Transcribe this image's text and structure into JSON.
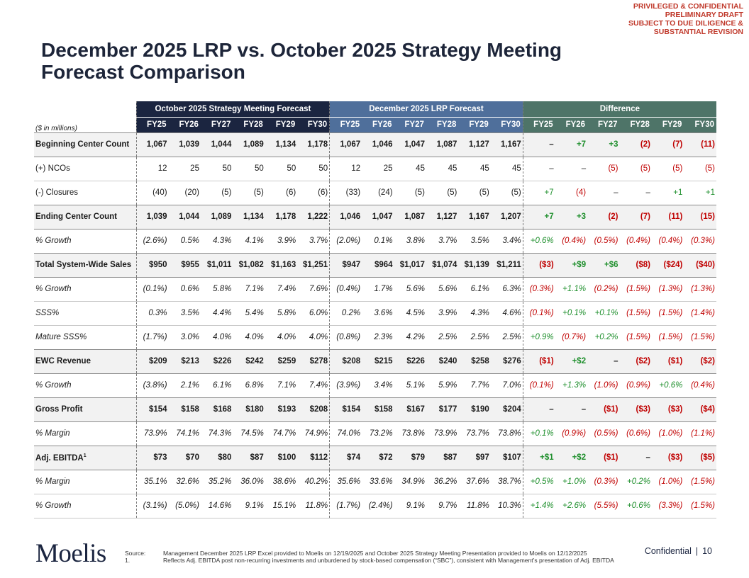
{
  "stamp": [
    "PRIVILEGED & CONFIDENTIAL",
    "PRELIMINARY DRAFT",
    "SUBJECT TO DUE DILIGENCE &",
    "SUBSTANTIAL REVISION"
  ],
  "title_line1": "December 2025 LRP vs. October 2025 Strategy Meeting",
  "title_line2": "Forecast Comparison",
  "unit_label": "($ in millions)",
  "groups": {
    "oct": "October 2025 Strategy Meeting Forecast",
    "dec": "December 2025 LRP Forecast",
    "diff": "Difference"
  },
  "years": [
    "FY25",
    "FY26",
    "FY27",
    "FY28",
    "FY29",
    "FY30"
  ],
  "rows": [
    {
      "label": "Beginning Center Count",
      "oct": [
        "1,067",
        "1,039",
        "1,044",
        "1,089",
        "1,134",
        "1,178"
      ],
      "dec": [
        "1,067",
        "1,046",
        "1,047",
        "1,087",
        "1,127",
        "1,167"
      ],
      "diff": [
        "–",
        "+7",
        "+3",
        "(2)",
        "(7)",
        "(11)"
      ]
    },
    {
      "label": "(+) NCOs",
      "oct": [
        "12",
        "25",
        "50",
        "50",
        "50",
        "50"
      ],
      "dec": [
        "12",
        "25",
        "45",
        "45",
        "45",
        "45"
      ],
      "diff": [
        "–",
        "–",
        "(5)",
        "(5)",
        "(5)",
        "(5)"
      ]
    },
    {
      "label": "(-) Closures",
      "oct": [
        "(40)",
        "(20)",
        "(5)",
        "(5)",
        "(6)",
        "(6)"
      ],
      "dec": [
        "(33)",
        "(24)",
        "(5)",
        "(5)",
        "(5)",
        "(5)"
      ],
      "diff": [
        "+7",
        "(4)",
        "–",
        "–",
        "+1",
        "+1"
      ]
    },
    {
      "label": "Ending Center Count",
      "oct": [
        "1,039",
        "1,044",
        "1,089",
        "1,134",
        "1,178",
        "1,222"
      ],
      "dec": [
        "1,046",
        "1,047",
        "1,087",
        "1,127",
        "1,167",
        "1,207"
      ],
      "diff": [
        "+7",
        "+3",
        "(2)",
        "(7)",
        "(11)",
        "(15)"
      ]
    },
    {
      "label": "% Growth",
      "oct": [
        "(2.6%)",
        "0.5%",
        "4.3%",
        "4.1%",
        "3.9%",
        "3.7%"
      ],
      "dec": [
        "(2.0%)",
        "0.1%",
        "3.8%",
        "3.7%",
        "3.5%",
        "3.4%"
      ],
      "diff": [
        "+0.6%",
        "(0.4%)",
        "(0.5%)",
        "(0.4%)",
        "(0.4%)",
        "(0.3%)"
      ]
    },
    {
      "label": "Total System-Wide Sales",
      "oct": [
        "$950",
        "$955",
        "$1,011",
        "$1,082",
        "$1,163",
        "$1,251"
      ],
      "dec": [
        "$947",
        "$964",
        "$1,017",
        "$1,074",
        "$1,139",
        "$1,211"
      ],
      "diff": [
        "($3)",
        "+$9",
        "+$6",
        "($8)",
        "($24)",
        "($40)"
      ]
    },
    {
      "label": "% Growth",
      "oct": [
        "(0.1%)",
        "0.6%",
        "5.8%",
        "7.1%",
        "7.4%",
        "7.6%"
      ],
      "dec": [
        "(0.4%)",
        "1.7%",
        "5.6%",
        "5.6%",
        "6.1%",
        "6.3%"
      ],
      "diff": [
        "(0.3%)",
        "+1.1%",
        "(0.2%)",
        "(1.5%)",
        "(1.3%)",
        "(1.3%)"
      ]
    },
    {
      "label": "SSS%",
      "oct": [
        "0.3%",
        "3.5%",
        "4.4%",
        "5.4%",
        "5.8%",
        "6.0%"
      ],
      "dec": [
        "0.2%",
        "3.6%",
        "4.5%",
        "3.9%",
        "4.3%",
        "4.6%"
      ],
      "diff": [
        "(0.1%)",
        "+0.1%",
        "+0.1%",
        "(1.5%)",
        "(1.5%)",
        "(1.4%)"
      ]
    },
    {
      "label": "Mature SSS%",
      "oct": [
        "(1.7%)",
        "3.0%",
        "4.0%",
        "4.0%",
        "4.0%",
        "4.0%"
      ],
      "dec": [
        "(0.8%)",
        "2.3%",
        "4.2%",
        "2.5%",
        "2.5%",
        "2.5%"
      ],
      "diff": [
        "+0.9%",
        "(0.7%)",
        "+0.2%",
        "(1.5%)",
        "(1.5%)",
        "(1.5%)"
      ]
    },
    {
      "label": "EWC Revenue",
      "oct": [
        "$209",
        "$213",
        "$226",
        "$242",
        "$259",
        "$278"
      ],
      "dec": [
        "$208",
        "$215",
        "$226",
        "$240",
        "$258",
        "$276"
      ],
      "diff": [
        "($1)",
        "+$2",
        "–",
        "($2)",
        "($1)",
        "($2)"
      ]
    },
    {
      "label": "% Growth",
      "oct": [
        "(3.8%)",
        "2.1%",
        "6.1%",
        "6.8%",
        "7.1%",
        "7.4%"
      ],
      "dec": [
        "(3.9%)",
        "3.4%",
        "5.1%",
        "5.9%",
        "7.7%",
        "7.0%"
      ],
      "diff": [
        "(0.1%)",
        "+1.3%",
        "(1.0%)",
        "(0.9%)",
        "+0.6%",
        "(0.4%)"
      ]
    },
    {
      "label": "Gross Profit",
      "oct": [
        "$154",
        "$158",
        "$168",
        "$180",
        "$193",
        "$208"
      ],
      "dec": [
        "$154",
        "$158",
        "$167",
        "$177",
        "$190",
        "$204"
      ],
      "diff": [
        "–",
        "–",
        "($1)",
        "($3)",
        "($3)",
        "($4)"
      ]
    },
    {
      "label": "% Margin",
      "oct": [
        "73.9%",
        "74.1%",
        "74.3%",
        "74.5%",
        "74.7%",
        "74.9%"
      ],
      "dec": [
        "74.0%",
        "73.2%",
        "73.8%",
        "73.9%",
        "73.7%",
        "73.8%"
      ],
      "diff": [
        "+0.1%",
        "(0.9%)",
        "(0.5%)",
        "(0.6%)",
        "(1.0%)",
        "(1.1%)"
      ]
    },
    {
      "label": "Adj. EBITDA",
      "sup": "1",
      "oct": [
        "$73",
        "$70",
        "$80",
        "$87",
        "$100",
        "$112"
      ],
      "dec": [
        "$74",
        "$72",
        "$79",
        "$87",
        "$97",
        "$107"
      ],
      "diff": [
        "+$1",
        "+$2",
        "($1)",
        "–",
        "($3)",
        "($5)"
      ]
    },
    {
      "label": "% Margin",
      "oct": [
        "35.1%",
        "32.6%",
        "35.2%",
        "36.0%",
        "38.6%",
        "40.2%"
      ],
      "dec": [
        "35.6%",
        "33.6%",
        "34.9%",
        "36.2%",
        "37.6%",
        "38.7%"
      ],
      "diff": [
        "+0.5%",
        "+1.0%",
        "(0.3%)",
        "+0.2%",
        "(1.0%)",
        "(1.5%)"
      ]
    },
    {
      "label": "% Growth",
      "oct": [
        "(3.1%)",
        "(5.0%)",
        "14.6%",
        "9.1%",
        "15.1%",
        "11.8%"
      ],
      "dec": [
        "(1.7%)",
        "(2.4%)",
        "9.1%",
        "9.7%",
        "11.8%",
        "10.3%"
      ],
      "diff": [
        "+1.4%",
        "+2.6%",
        "(5.5%)",
        "+0.6%",
        "(3.3%)",
        "(1.5%)"
      ]
    }
  ],
  "logo": "Moelis",
  "source_key": "Source:",
  "source_text": "Management December 2025 LRP Excel provided to Moelis on 12/19/2025 and October 2025 Strategy Meeting Presentation provided to Moelis on 12/12/2025",
  "note_key": "1.",
  "note_text": "Reflects Adj. EBITDA post non-recurring investments and unburdened by stock-based compensation (“SBC”), consistent with Management’s presentation of Adj. EBITDA",
  "confidential": "Confidential",
  "page_number": "10",
  "colors": {
    "oct": "#1b2540",
    "dec": "#4f6f9b",
    "diff": "#4e7468",
    "positive": "#1e8f2c",
    "negative": "#c00000",
    "stamp": "#c0392b"
  }
}
